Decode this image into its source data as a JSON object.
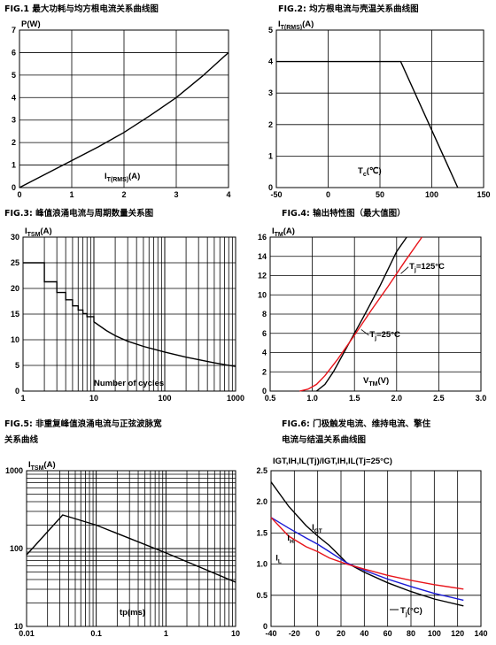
{
  "chart_data": [
    {
      "type": "line",
      "title": "FIG.1  最大功耗与均方根电流关系曲线图",
      "ylabel": "P(W)",
      "xlabel": "IT(RMS)(A)",
      "xlabel_main": "I",
      "xlabel_sub": "T(RMS)",
      "xlabel_tail": "(A)",
      "ylabel_main": "P",
      "ylabel_sub": "",
      "ylabel_tail": "(W)",
      "xlim": [
        0,
        4
      ],
      "ylim": [
        0,
        7
      ],
      "xticks": [
        "0",
        "1",
        "2",
        "3",
        "4"
      ],
      "yticks": [
        "0",
        "1",
        "2",
        "3",
        "4",
        "5",
        "6",
        "7"
      ],
      "grid": true,
      "series": [
        {
          "color": "#000000",
          "x": [
            0,
            0.5,
            1,
            1.5,
            2,
            2.5,
            3,
            3.5,
            4
          ],
          "y": [
            0,
            0.6,
            1.2,
            1.8,
            2.45,
            3.2,
            4.0,
            4.95,
            6.0
          ]
        }
      ]
    },
    {
      "type": "line",
      "title": "FIG.2:  均方根电流与壳温关系曲线图",
      "ylabel": "IT(RMS)(A)",
      "xlabel": "Tc(℃)",
      "xlabel_main": "T",
      "xlabel_sub": "c",
      "xlabel_tail": "(℃)",
      "ylabel_main": "I",
      "ylabel_sub": "T(RMS)",
      "ylabel_tail": "(A)",
      "xlim": [
        -50,
        150
      ],
      "ylim": [
        0,
        5
      ],
      "xticks": [
        "-50",
        "0",
        "50",
        "100",
        "150"
      ],
      "yticks": [
        "0",
        "1",
        "2",
        "3",
        "4",
        "5"
      ],
      "grid": true,
      "series": [
        {
          "color": "#000000",
          "x": [
            -50,
            70,
            125
          ],
          "y": [
            4,
            4,
            0
          ]
        }
      ]
    },
    {
      "type": "line",
      "title": "FIG.3:   峰值浪涌电流与周期数量关系图",
      "ylabel": "ITSM(A)",
      "xlabel": "Number of cycles",
      "xlabel_main": "Number of cycles",
      "xlabel_sub": "",
      "xlabel_tail": "",
      "ylabel_main": "I",
      "ylabel_sub": "TSM",
      "ylabel_tail": "(A)",
      "xscale": "log",
      "xlim": [
        1,
        1000
      ],
      "ylim": [
        0,
        30
      ],
      "xticks": [
        "1",
        "10",
        "100",
        "1000"
      ],
      "yticks": [
        "0",
        "5",
        "10",
        "15",
        "20",
        "25",
        "30"
      ],
      "grid": true,
      "series": [
        {
          "color": "#000000",
          "step": true,
          "x": [
            1,
            2,
            3,
            4,
            5,
            6,
            7,
            8,
            10,
            15,
            20,
            30,
            50,
            100,
            200,
            500,
            1000
          ],
          "y": [
            25,
            21.3,
            19.2,
            17.8,
            16.6,
            15.8,
            15.1,
            14.5,
            13.5,
            11.8,
            10.8,
            9.7,
            8.7,
            7.6,
            6.6,
            5.5,
            4.8
          ]
        }
      ]
    },
    {
      "type": "line",
      "title": "FIG.4:   输出特性图（最大值图）",
      "ylabel": "ITM(A)",
      "xlabel": "VTM(V)",
      "xlabel_main": "V",
      "xlabel_sub": "TM",
      "xlabel_tail": "(V)",
      "ylabel_main": "I",
      "ylabel_sub": "TM",
      "ylabel_tail": "(A)",
      "xlim": [
        0.5,
        3.0
      ],
      "ylim": [
        0,
        16
      ],
      "xticks": [
        "0.5",
        "1.0",
        "1.5",
        "2.0",
        "2.5",
        "3.0"
      ],
      "yticks": [
        "0",
        "2",
        "4",
        "6",
        "8",
        "10",
        "12",
        "14",
        "16"
      ],
      "grid": true,
      "annotations": [
        {
          "text_main": "T",
          "text_sub": "j",
          "text_tail": "=125°C",
          "x": 2.15,
          "y": 12.7
        },
        {
          "text_main": "T",
          "text_sub": "j",
          "text_tail": "=25°C",
          "x": 1.68,
          "y": 5.6
        }
      ],
      "series": [
        {
          "name": "Tj=25°C",
          "color": "#000000",
          "x": [
            1.05,
            1.15,
            1.25,
            1.4,
            1.6,
            1.8,
            2.0,
            2.12
          ],
          "y": [
            0,
            0.7,
            2.0,
            4.4,
            7.6,
            10.9,
            14.5,
            16
          ]
        },
        {
          "name": "Tj=125°C",
          "color": "#e8151b",
          "x": [
            0.85,
            0.95,
            1.05,
            1.15,
            1.3,
            1.5,
            1.7,
            1.9,
            2.1,
            2.3
          ],
          "y": [
            0,
            0.2,
            0.7,
            1.6,
            3.3,
            5.8,
            8.4,
            10.9,
            13.5,
            16
          ]
        }
      ]
    },
    {
      "type": "line",
      "title_line1": "FIG.5:   非重复峰值浪涌电流与正弦波脉宽",
      "title_line2": "关系曲线",
      "ylabel": "ITSM(A)",
      "xlabel": "tp(ms)",
      "xlabel_main": "tp(ms)",
      "xlabel_sub": "",
      "xlabel_tail": "",
      "ylabel_main": "I",
      "ylabel_sub": "TSM",
      "ylabel_tail": "(A)",
      "xscale": "log",
      "yscale": "log",
      "xlim": [
        0.01,
        10
      ],
      "ylim": [
        10,
        1000
      ],
      "xticks": [
        "0.01",
        "0.1",
        "1",
        "10"
      ],
      "yticks": [
        "10",
        "100",
        "1000"
      ],
      "grid": true,
      "series": [
        {
          "color": "#000000",
          "x": [
            0.01,
            0.033,
            0.1,
            1,
            10
          ],
          "y": [
            83,
            270,
            200,
            88,
            37
          ]
        }
      ]
    },
    {
      "type": "line",
      "title_line1": "FIG.6:   门极触发电流、维持电流、擎住",
      "title_line2": "电流与结温关系曲线图",
      "header_text": "IGT,IH,IL(Tj)/IGT,IH,IL(Tj=25°C)",
      "xlabel": "Tj(°C)",
      "xlabel_main": "T",
      "xlabel_sub": "j",
      "xlabel_tail": "(°C)",
      "xlim": [
        -40,
        140
      ],
      "ylim": [
        0,
        2.5
      ],
      "xticks": [
        "-40",
        "-20",
        "0",
        "20",
        "40",
        "60",
        "80",
        "100",
        "120",
        "140"
      ],
      "yticks": [
        "0",
        "0.5",
        "1.0",
        "1.5",
        "2.0",
        "2.5"
      ],
      "grid": true,
      "series": [
        {
          "name": "IGT",
          "color": "#000000",
          "x": [
            -40,
            -25,
            -10,
            0,
            10,
            25,
            40,
            60,
            80,
            100,
            125
          ],
          "y": [
            2.32,
            1.93,
            1.62,
            1.45,
            1.3,
            1.02,
            0.87,
            0.7,
            0.56,
            0.44,
            0.33
          ]
        },
        {
          "name": "IH",
          "color": "#1a1ad6",
          "x": [
            -40,
            -25,
            -10,
            0,
            10,
            25,
            40,
            60,
            80,
            100,
            125
          ],
          "y": [
            1.75,
            1.58,
            1.42,
            1.32,
            1.2,
            1.02,
            0.9,
            0.76,
            0.64,
            0.53,
            0.42
          ]
        },
        {
          "name": "IL",
          "color": "#e8151b",
          "x": [
            -40,
            -25,
            -10,
            0,
            10,
            25,
            40,
            60,
            80,
            100,
            125
          ],
          "y": [
            1.75,
            1.45,
            1.28,
            1.2,
            1.1,
            1.0,
            0.92,
            0.82,
            0.74,
            0.67,
            0.6
          ]
        }
      ]
    }
  ]
}
